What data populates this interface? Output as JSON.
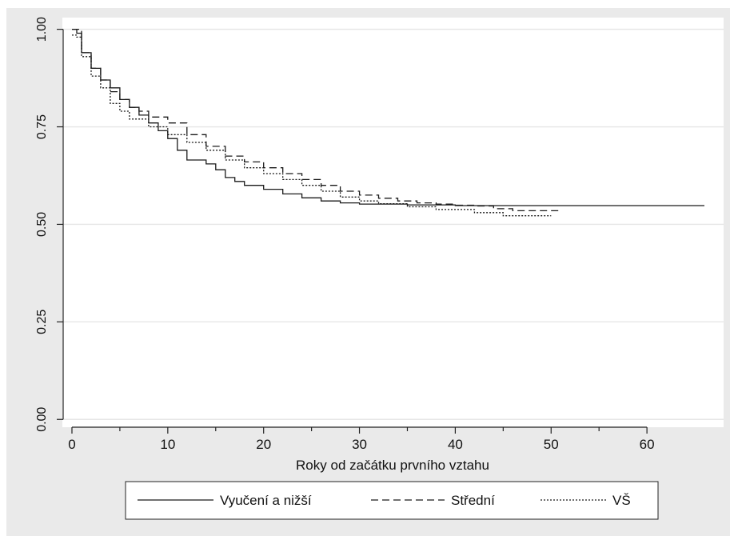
{
  "chart_data": {
    "type": "line",
    "title": "",
    "xlabel": "Roky od začátku prvního vztahu",
    "ylabel": "",
    "xlim": [
      -1,
      68
    ],
    "ylim": [
      -0.02,
      1.03
    ],
    "x_ticks": [
      0,
      10,
      20,
      30,
      40,
      50,
      60
    ],
    "y_ticks": [
      0.0,
      0.25,
      0.5,
      0.75,
      1.0
    ],
    "x_tick_labels": [
      "0",
      "10",
      "20",
      "30",
      "40",
      "50",
      "60"
    ],
    "y_tick_labels": [
      "0.00",
      "0.25",
      "0.50",
      "0.75",
      "1.00"
    ],
    "grid": "horizontal",
    "legend_position": "bottom",
    "step": true,
    "series": [
      {
        "name": "Vyučení a nižší",
        "line_style": "solid",
        "x": [
          0,
          0.5,
          1,
          2,
          3,
          4,
          5,
          6,
          7,
          8,
          9,
          10,
          11,
          12,
          14,
          15,
          16,
          17,
          18,
          20,
          22,
          24,
          26,
          28,
          30,
          35,
          40,
          66
        ],
        "y": [
          1.0,
          0.99,
          0.94,
          0.9,
          0.87,
          0.85,
          0.82,
          0.8,
          0.78,
          0.76,
          0.74,
          0.72,
          0.69,
          0.665,
          0.655,
          0.64,
          0.62,
          0.61,
          0.6,
          0.59,
          0.578,
          0.568,
          0.56,
          0.555,
          0.552,
          0.55,
          0.548,
          0.548
        ]
      },
      {
        "name": "Střední",
        "line_style": "dashed",
        "x": [
          0,
          1,
          2,
          3,
          4,
          5,
          6,
          7,
          8,
          10,
          12,
          14,
          16,
          18,
          20,
          22,
          24,
          26,
          28,
          30,
          32,
          34,
          36,
          38,
          40,
          42,
          44,
          46,
          48,
          51
        ],
        "y": [
          1.0,
          0.94,
          0.9,
          0.87,
          0.84,
          0.82,
          0.8,
          0.79,
          0.775,
          0.76,
          0.73,
          0.7,
          0.675,
          0.66,
          0.645,
          0.63,
          0.615,
          0.6,
          0.585,
          0.575,
          0.567,
          0.56,
          0.555,
          0.552,
          0.549,
          0.547,
          0.54,
          0.535,
          0.535,
          0.535
        ]
      },
      {
        "name": "VŠ",
        "line_style": "dotted",
        "x": [
          0,
          0.5,
          1,
          2,
          3,
          4,
          5,
          6,
          8,
          10,
          12,
          14,
          16,
          18,
          20,
          22,
          24,
          26,
          28,
          30,
          32,
          35,
          38,
          42,
          45,
          50
        ],
        "y": [
          0.985,
          0.98,
          0.93,
          0.88,
          0.85,
          0.81,
          0.79,
          0.77,
          0.75,
          0.73,
          0.71,
          0.69,
          0.665,
          0.645,
          0.63,
          0.615,
          0.6,
          0.585,
          0.57,
          0.56,
          0.553,
          0.545,
          0.538,
          0.53,
          0.522,
          0.522
        ]
      }
    ]
  }
}
